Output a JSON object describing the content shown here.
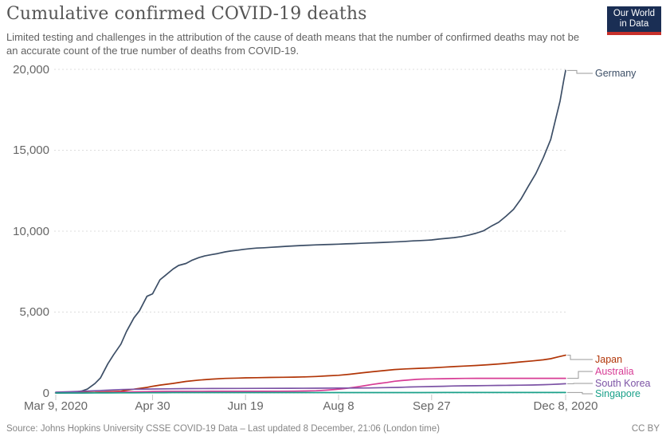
{
  "header": {
    "title": "Cumulative confirmed COVID-19 deaths",
    "subtitle": "Limited testing and challenges in the attribution of the cause of death means that the number of confirmed deaths may not be an accurate count of the true number of deaths from COVID-19.",
    "logo": {
      "line1": "Our World",
      "line2": "in Data",
      "bg_color": "#1A2E54",
      "accent_color": "#C7302B"
    }
  },
  "footer": {
    "source": "Source: Johns Hopkins University CSSE COVID-19 Data – Last updated 8 December, 21:06 (London time)",
    "license": "CC BY"
  },
  "chart_data": {
    "type": "line",
    "title": "Cumulative confirmed COVID-19 deaths",
    "x_domain_days": [
      0,
      274
    ],
    "x_start_date": "Mar 9, 2020",
    "x_end_date": "Dec 8, 2020",
    "y_domain": [
      0,
      20000
    ],
    "grid": "horizontal-dashed",
    "legend_position": "right-end-labels",
    "y_ticks": [
      {
        "value": 0,
        "label": "0"
      },
      {
        "value": 5000,
        "label": "5,000"
      },
      {
        "value": 10000,
        "label": "10,000"
      },
      {
        "value": 15000,
        "label": "15,000"
      },
      {
        "value": 20000,
        "label": "20,000"
      }
    ],
    "x_ticks": [
      {
        "day": 0,
        "label": "Mar 9, 2020"
      },
      {
        "day": 52,
        "label": "Apr 30"
      },
      {
        "day": 102,
        "label": "Jun 19"
      },
      {
        "day": 152,
        "label": "Aug 8"
      },
      {
        "day": 202,
        "label": "Sep 27"
      },
      {
        "day": 274,
        "label": "Dec 8, 2020"
      }
    ],
    "series": [
      {
        "name": "Germany",
        "slug": "germany",
        "color": "#3C4E66",
        "end_value": 19932,
        "points": [
          [
            0,
            2
          ],
          [
            3,
            5
          ],
          [
            7,
            17
          ],
          [
            10,
            44
          ],
          [
            14,
            123
          ],
          [
            17,
            239
          ],
          [
            21,
            583
          ],
          [
            24,
            931
          ],
          [
            28,
            1810
          ],
          [
            31,
            2349
          ],
          [
            35,
            3022
          ],
          [
            38,
            3804
          ],
          [
            42,
            4642
          ],
          [
            45,
            5086
          ],
          [
            49,
            5976
          ],
          [
            52,
            6126
          ],
          [
            56,
            6993
          ],
          [
            59,
            7275
          ],
          [
            63,
            7661
          ],
          [
            66,
            7884
          ],
          [
            70,
            8003
          ],
          [
            73,
            8193
          ],
          [
            77,
            8371
          ],
          [
            80,
            8470
          ],
          [
            84,
            8555
          ],
          [
            87,
            8618
          ],
          [
            91,
            8717
          ],
          [
            94,
            8772
          ],
          [
            98,
            8830
          ],
          [
            101,
            8875
          ],
          [
            105,
            8928
          ],
          [
            108,
            8955
          ],
          [
            112,
            8973
          ],
          [
            116,
            9003
          ],
          [
            120,
            9036
          ],
          [
            124,
            9064
          ],
          [
            128,
            9088
          ],
          [
            132,
            9112
          ],
          [
            136,
            9135
          ],
          [
            140,
            9151
          ],
          [
            144,
            9168
          ],
          [
            148,
            9183
          ],
          [
            152,
            9195
          ],
          [
            156,
            9215
          ],
          [
            160,
            9232
          ],
          [
            164,
            9253
          ],
          [
            168,
            9271
          ],
          [
            172,
            9288
          ],
          [
            176,
            9305
          ],
          [
            180,
            9325
          ],
          [
            184,
            9347
          ],
          [
            188,
            9371
          ],
          [
            192,
            9398
          ],
          [
            196,
            9418
          ],
          [
            200,
            9443
          ],
          [
            202,
            9460
          ],
          [
            206,
            9511
          ],
          [
            210,
            9556
          ],
          [
            214,
            9600
          ],
          [
            218,
            9663
          ],
          [
            222,
            9758
          ],
          [
            226,
            9875
          ],
          [
            230,
            10032
          ],
          [
            234,
            10305
          ],
          [
            238,
            10546
          ],
          [
            242,
            10930
          ],
          [
            246,
            11352
          ],
          [
            250,
            11982
          ],
          [
            254,
            12790
          ],
          [
            258,
            13556
          ],
          [
            262,
            14540
          ],
          [
            266,
            15672
          ],
          [
            269,
            17087
          ],
          [
            271,
            18034
          ],
          [
            273,
            19342
          ],
          [
            274,
            19932
          ]
        ]
      },
      {
        "name": "Japan",
        "slug": "japan",
        "color": "#B13507",
        "end_value": 2337,
        "points": [
          [
            0,
            10
          ],
          [
            7,
            19
          ],
          [
            14,
            33
          ],
          [
            21,
            45
          ],
          [
            28,
            73
          ],
          [
            35,
            108
          ],
          [
            42,
            236
          ],
          [
            49,
            345
          ],
          [
            52,
            415
          ],
          [
            56,
            487
          ],
          [
            63,
            590
          ],
          [
            70,
            713
          ],
          [
            77,
            796
          ],
          [
            84,
            857
          ],
          [
            91,
            900
          ],
          [
            98,
            922
          ],
          [
            102,
            935
          ],
          [
            108,
            948
          ],
          [
            115,
            962
          ],
          [
            122,
            972
          ],
          [
            128,
            982
          ],
          [
            134,
            995
          ],
          [
            140,
            1020
          ],
          [
            146,
            1060
          ],
          [
            152,
            1095
          ],
          [
            158,
            1160
          ],
          [
            164,
            1235
          ],
          [
            170,
            1310
          ],
          [
            176,
            1380
          ],
          [
            182,
            1450
          ],
          [
            188,
            1490
          ],
          [
            195,
            1520
          ],
          [
            202,
            1550
          ],
          [
            208,
            1590
          ],
          [
            214,
            1630
          ],
          [
            220,
            1665
          ],
          [
            226,
            1700
          ],
          [
            232,
            1745
          ],
          [
            238,
            1793
          ],
          [
            244,
            1850
          ],
          [
            250,
            1920
          ],
          [
            256,
            1980
          ],
          [
            262,
            2050
          ],
          [
            266,
            2120
          ],
          [
            270,
            2230
          ],
          [
            274,
            2337
          ]
        ]
      },
      {
        "name": "Australia",
        "slug": "australia",
        "color": "#D73C95",
        "end_value": 908,
        "points": [
          [
            0,
            3
          ],
          [
            7,
            6
          ],
          [
            14,
            7
          ],
          [
            21,
            18
          ],
          [
            28,
            40
          ],
          [
            35,
            61
          ],
          [
            42,
            71
          ],
          [
            49,
            84
          ],
          [
            52,
            93
          ],
          [
            60,
            97
          ],
          [
            70,
            100
          ],
          [
            84,
            102
          ],
          [
            98,
            103
          ],
          [
            112,
            104
          ],
          [
            120,
            106
          ],
          [
            128,
            113
          ],
          [
            134,
            122
          ],
          [
            140,
            140
          ],
          [
            145,
            170
          ],
          [
            150,
            215
          ],
          [
            154,
            255
          ],
          [
            158,
            314
          ],
          [
            162,
            380
          ],
          [
            166,
            450
          ],
          [
            170,
            525
          ],
          [
            174,
            590
          ],
          [
            178,
            652
          ],
          [
            182,
            724
          ],
          [
            186,
            770
          ],
          [
            190,
            810
          ],
          [
            194,
            844
          ],
          [
            198,
            861
          ],
          [
            202,
            870
          ],
          [
            208,
            883
          ],
          [
            214,
            894
          ],
          [
            220,
            902
          ],
          [
            226,
            905
          ],
          [
            232,
            907
          ],
          [
            244,
            907
          ],
          [
            258,
            908
          ],
          [
            274,
            908
          ]
        ]
      },
      {
        "name": "South Korea",
        "slug": "south-korea",
        "color": "#7C53A5",
        "end_value": 572,
        "points": [
          [
            0,
            51
          ],
          [
            7,
            75
          ],
          [
            14,
            104
          ],
          [
            21,
            139
          ],
          [
            28,
            174
          ],
          [
            35,
            211
          ],
          [
            42,
            232
          ],
          [
            49,
            243
          ],
          [
            52,
            247
          ],
          [
            60,
            258
          ],
          [
            70,
            270
          ],
          [
            84,
            276
          ],
          [
            98,
            280
          ],
          [
            112,
            284
          ],
          [
            126,
            289
          ],
          [
            140,
            298
          ],
          [
            152,
            304
          ],
          [
            160,
            305
          ],
          [
            168,
            310
          ],
          [
            176,
            329
          ],
          [
            184,
            344
          ],
          [
            190,
            367
          ],
          [
            196,
            385
          ],
          [
            202,
            401
          ],
          [
            208,
            416
          ],
          [
            214,
            433
          ],
          [
            220,
            443
          ],
          [
            226,
            450
          ],
          [
            232,
            459
          ],
          [
            238,
            468
          ],
          [
            244,
            475
          ],
          [
            250,
            483
          ],
          [
            256,
            494
          ],
          [
            262,
            510
          ],
          [
            266,
            526
          ],
          [
            270,
            545
          ],
          [
            274,
            572
          ]
        ]
      },
      {
        "name": "Singapore",
        "slug": "singapore",
        "color": "#1BA18A",
        "end_value": 29,
        "points": [
          [
            0,
            0
          ],
          [
            14,
            2
          ],
          [
            21,
            3
          ],
          [
            28,
            6
          ],
          [
            35,
            10
          ],
          [
            42,
            12
          ],
          [
            49,
            14
          ],
          [
            52,
            15
          ],
          [
            58,
            20
          ],
          [
            63,
            23
          ],
          [
            70,
            25
          ],
          [
            84,
            26
          ],
          [
            98,
            26
          ],
          [
            112,
            27
          ],
          [
            140,
            27
          ],
          [
            168,
            27
          ],
          [
            196,
            27
          ],
          [
            210,
            28
          ],
          [
            238,
            28
          ],
          [
            259,
            29
          ],
          [
            274,
            29
          ]
        ]
      }
    ]
  }
}
